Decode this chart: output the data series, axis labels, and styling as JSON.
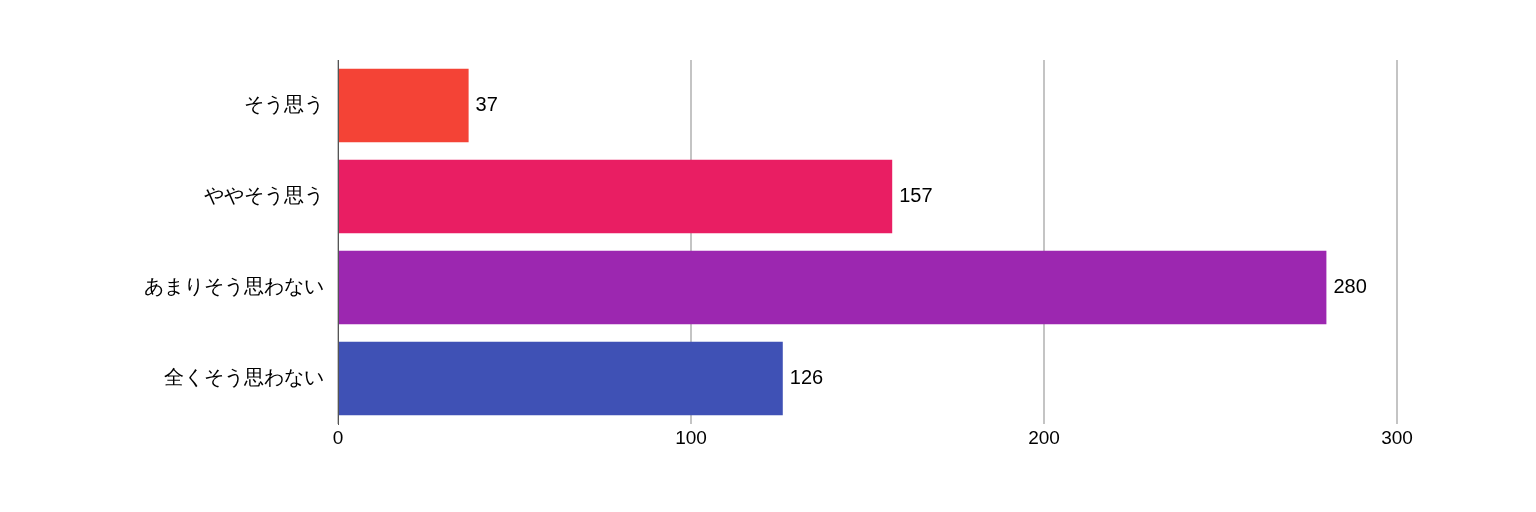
{
  "chart_data": {
    "type": "bar",
    "orientation": "horizontal",
    "categories": [
      "そう思う",
      "ややそう思う",
      "あまりそう思わない",
      "全くそう思わない"
    ],
    "values": [
      37,
      157,
      280,
      126
    ],
    "colors": [
      "#f44336",
      "#e91e63",
      "#9c27b0",
      "#3f51b5"
    ],
    "xlim": [
      0,
      300
    ],
    "xticks": [
      0,
      100,
      200,
      300
    ],
    "grid": "x",
    "data_labels": true,
    "legend": false
  }
}
